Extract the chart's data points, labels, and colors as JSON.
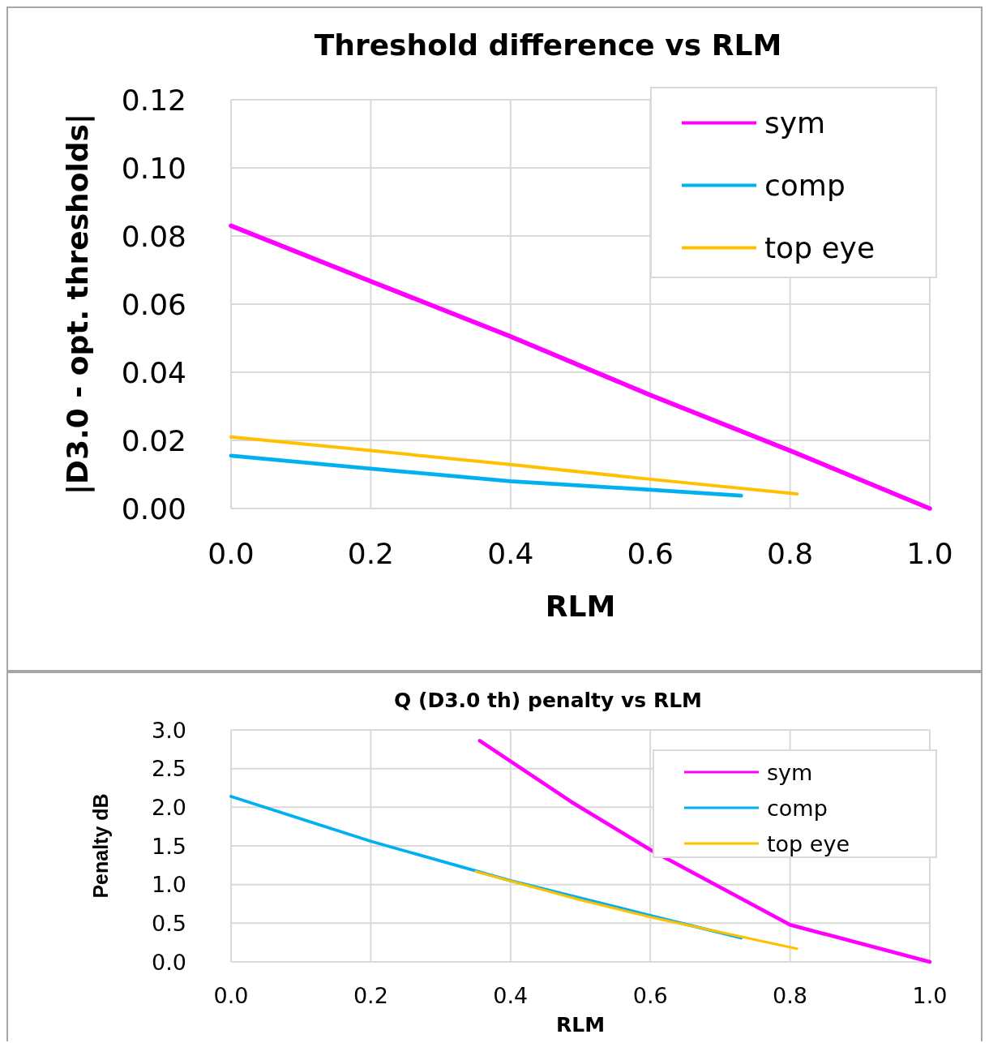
{
  "chart_data": [
    {
      "type": "line",
      "title": "Threshold difference vs RLM",
      "xlabel": "RLM",
      "ylabel": "|D3.0 - opt. thresholds|",
      "xlim": [
        0,
        1
      ],
      "ylim": [
        0,
        0.12
      ],
      "xticks": [
        {
          "value": 0,
          "label": "0.0"
        },
        {
          "value": 0.2,
          "label": "0.2"
        },
        {
          "value": 0.4,
          "label": "0.4"
        },
        {
          "value": 0.6,
          "label": "0.6"
        },
        {
          "value": 0.8,
          "label": "0.8"
        },
        {
          "value": 1,
          "label": "1.0"
        }
      ],
      "yticks": [
        {
          "value": 0,
          "label": "0.00"
        },
        {
          "value": 0.02,
          "label": "0.02"
        },
        {
          "value": 0.04,
          "label": "0.04"
        },
        {
          "value": 0.06,
          "label": "0.06"
        },
        {
          "value": 0.08,
          "label": "0.08"
        },
        {
          "value": 0.1,
          "label": "0.10"
        },
        {
          "value": 0.12,
          "label": "0.12"
        }
      ],
      "grid": true,
      "legend": "top right",
      "series": [
        {
          "name": "sym",
          "color": "#ff00ff",
          "x": [
            0,
            0.2,
            0.4,
            0.6,
            0.8,
            1.0
          ],
          "values": [
            0.083,
            0.0667,
            0.0505,
            0.0333,
            0.017,
            0
          ]
        },
        {
          "name": "comp",
          "color": "#00b0f0",
          "x": [
            0,
            0.2,
            0.4,
            0.6,
            0.73
          ],
          "values": [
            0.0155,
            0.0117,
            0.008,
            0.0055,
            0.0038
          ]
        },
        {
          "name": "top eye",
          "color": "#ffc000",
          "x": [
            0,
            0.2,
            0.4,
            0.6,
            0.81
          ],
          "values": [
            0.021,
            0.017,
            0.0129,
            0.0086,
            0.0043
          ]
        }
      ]
    },
    {
      "type": "line",
      "title": "Q (D3.0 th) penalty vs RLM",
      "xlabel": "RLM",
      "ylabel": "Penalty dB",
      "xlim": [
        0,
        1
      ],
      "ylim": [
        0,
        3
      ],
      "xticks": [
        {
          "value": 0,
          "label": "0.0"
        },
        {
          "value": 0.2,
          "label": "0.2"
        },
        {
          "value": 0.4,
          "label": "0.4"
        },
        {
          "value": 0.6,
          "label": "0.6"
        },
        {
          "value": 0.8,
          "label": "0.8"
        },
        {
          "value": 1,
          "label": "1.0"
        }
      ],
      "yticks": [
        {
          "value": 0,
          "label": "0.0"
        },
        {
          "value": 0.5,
          "label": "0.5"
        },
        {
          "value": 1,
          "label": "1.0"
        },
        {
          "value": 1.5,
          "label": "1.5"
        },
        {
          "value": 2,
          "label": "2.0"
        },
        {
          "value": 2.5,
          "label": "2.5"
        },
        {
          "value": 3,
          "label": "3.0"
        }
      ],
      "grid": true,
      "legend": "top right",
      "series": [
        {
          "name": "sym",
          "color": "#ff00ff",
          "x": [
            0.356,
            0.487,
            0.6,
            0.8,
            1.0
          ],
          "values": [
            2.86,
            2.07,
            1.45,
            0.48,
            0
          ]
        },
        {
          "name": "comp",
          "color": "#00b0f0",
          "x": [
            0,
            0.2,
            0.4,
            0.6,
            0.73
          ],
          "values": [
            2.14,
            1.56,
            1.05,
            0.6,
            0.31
          ]
        },
        {
          "name": "top eye",
          "color": "#ffc000",
          "x": [
            0.35,
            0.5,
            0.6,
            0.81
          ],
          "values": [
            1.17,
            0.8,
            0.58,
            0.17
          ]
        }
      ]
    }
  ]
}
